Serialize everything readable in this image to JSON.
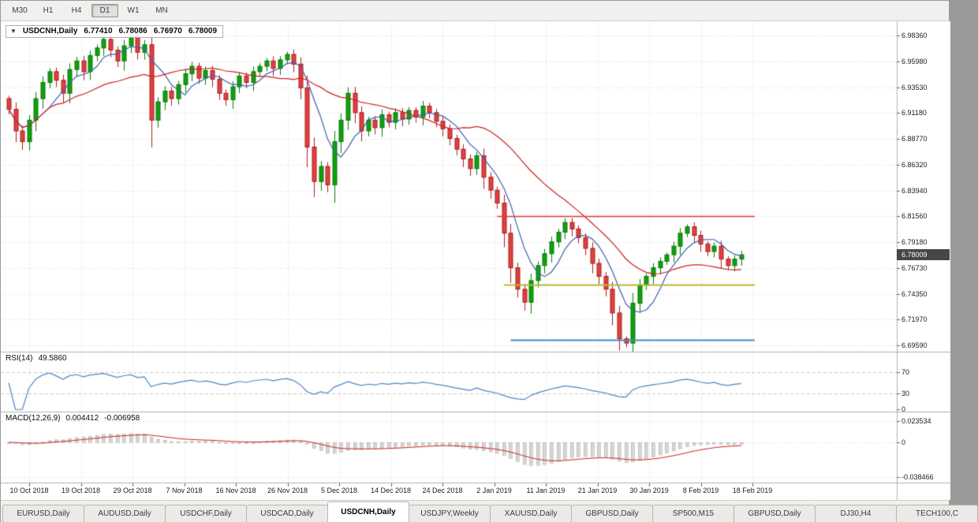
{
  "toolbar": {
    "timeframes": [
      {
        "label": "M30",
        "active": false
      },
      {
        "label": "H1",
        "active": false
      },
      {
        "label": "H4",
        "active": false
      },
      {
        "label": "D1",
        "active": true
      },
      {
        "label": "W1",
        "active": false
      },
      {
        "label": "MN",
        "active": false
      }
    ]
  },
  "chart": {
    "collapse_icon": "▼",
    "symbol": "USDCNH,Daily",
    "ohlc": {
      "open": "6.77410",
      "high": "6.78086",
      "low": "6.76970",
      "close": "6.78009"
    },
    "price_axis_labels": [
      "6.98360",
      "6.95980",
      "6.93530",
      "6.91180",
      "6.88770",
      "6.86320",
      "6.83940",
      "6.81560",
      "6.79180",
      "6.76730",
      "6.74350",
      "6.71970",
      "6.69590"
    ],
    "current_price": "6.78009"
  },
  "rsi_panel": {
    "title": "RSI(14)",
    "value": "49.5860",
    "axis_labels": [
      "70",
      "30",
      "0"
    ]
  },
  "macd_panel": {
    "title": "MACD(12,26,9)",
    "value_main": "0.004412",
    "value_signal": "-0.006958",
    "axis_labels": [
      "0.023534",
      "0",
      "-0.038466"
    ]
  },
  "date_axis": [
    "10 Oct 2018",
    "19 Oct 2018",
    "29 Oct 2018",
    "7 Nov 2018",
    "16 Nov 2018",
    "26 Nov 2018",
    "5 Dec 2018",
    "14 Dec 2018",
    "24 Dec 2018",
    "2 Jan 2019",
    "11 Jan 2019",
    "21 Jan 2019",
    "30 Jan 2019",
    "8 Feb 2019",
    "18 Feb 2019"
  ],
  "tabs": [
    {
      "label": "EURUSD,Daily",
      "active": false
    },
    {
      "label": "AUDUSD,Daily",
      "active": false
    },
    {
      "label": "USDCHF,Daily",
      "active": false
    },
    {
      "label": "USDCAD,Daily",
      "active": false
    },
    {
      "label": "USDCNH,Daily",
      "active": true
    },
    {
      "label": "USDJPY,Weekly",
      "active": false
    },
    {
      "label": "XAUUSD,Daily",
      "active": false
    },
    {
      "label": "GBPUSD,Daily",
      "active": false
    },
    {
      "label": "SP500,M15",
      "active": false
    },
    {
      "label": "GBPUSD,Daily",
      "active": false
    },
    {
      "label": "DJ30,H4",
      "active": false
    },
    {
      "label": "TECH100,C",
      "active": false
    }
  ],
  "colors": {
    "up_fill": "#0fa00f",
    "up_stroke": "#0a7a0a",
    "down_fill": "#e04040",
    "down_stroke": "#aa1f1f",
    "ma_fast": "#3a62b0",
    "ma_slow": "#cc2222",
    "rsi": "#4a86c8",
    "rsi_levels": "#c9c9c9",
    "macd_hist_fill": "#d6d6d6",
    "macd_hist_stroke": "#b2b2b2",
    "macd_signal": "#cc2222",
    "level_red": "#e03a3a",
    "level_yellow": "#b9b92e",
    "level_blue": "#3f8fbf",
    "grid": "#dcdcdc",
    "divider": "#b5b2ae",
    "badge_bg": "#464646"
  },
  "chart_data": {
    "type": "candlestick",
    "symbol": "USDCNH",
    "timeframe": "D1",
    "ylim": [
      6.69,
      6.9953
    ],
    "first_open": 6.925,
    "closes": [
      6.915,
      6.895,
      6.885,
      6.905,
      6.925,
      6.94,
      6.95,
      6.942,
      6.93,
      6.952,
      6.96,
      6.95,
      6.965,
      6.972,
      6.98,
      6.97,
      6.96,
      6.974,
      6.983,
      6.968,
      6.975,
      6.905,
      6.922,
      6.932,
      6.925,
      6.938,
      6.948,
      6.955,
      6.944,
      6.951,
      6.943,
      6.93,
      6.924,
      6.936,
      6.946,
      6.94,
      6.95,
      6.955,
      6.96,
      6.953,
      6.961,
      6.966,
      6.957,
      6.935,
      6.88,
      6.848,
      6.862,
      6.845,
      6.885,
      6.905,
      6.93,
      6.912,
      6.895,
      6.905,
      6.898,
      6.91,
      6.903,
      6.912,
      6.906,
      6.914,
      6.908,
      6.918,
      6.912,
      6.904,
      6.897,
      6.888,
      6.878,
      6.869,
      6.86,
      6.872,
      6.852,
      6.84,
      6.828,
      6.8,
      6.768,
      6.748,
      6.736,
      6.756,
      6.77,
      6.781,
      6.792,
      6.801,
      6.81,
      6.804,
      6.796,
      6.786,
      6.772,
      6.76,
      6.748,
      6.726,
      6.702,
      6.698,
      6.735,
      6.752,
      6.76,
      6.768,
      6.774,
      6.78,
      6.788,
      6.8,
      6.806,
      6.798,
      6.79,
      6.783,
      6.788,
      6.776,
      6.77,
      6.776,
      6.78
    ],
    "overlays": [
      {
        "name": "ma-fast",
        "type": "sma",
        "period": 6,
        "color_key": "ma_fast"
      },
      {
        "name": "ma-slow",
        "type": "sma",
        "period": 22,
        "color_key": "ma_slow"
      }
    ],
    "hlines": [
      {
        "price": 6.8156,
        "from_bar": 72,
        "to_bar": 110,
        "color_key": "level_red",
        "width": 1.5
      },
      {
        "price": 6.752,
        "from_bar": 73,
        "to_bar": 110,
        "color_key": "level_yellow",
        "width": 2
      },
      {
        "price": 6.701,
        "from_bar": 74,
        "to_bar": 110,
        "color_key": "level_blue",
        "width": 2
      }
    ],
    "indicators": [
      {
        "name": "RSI",
        "period": 14,
        "current": 49.586,
        "levels": [
          70,
          30
        ],
        "range": [
          0,
          100
        ]
      },
      {
        "name": "MACD",
        "fast": 12,
        "slow": 26,
        "signal": 9,
        "current_main": 0.004412,
        "current_signal": -0.006958,
        "axis_range": [
          -0.038466,
          0.023534
        ]
      }
    ]
  }
}
